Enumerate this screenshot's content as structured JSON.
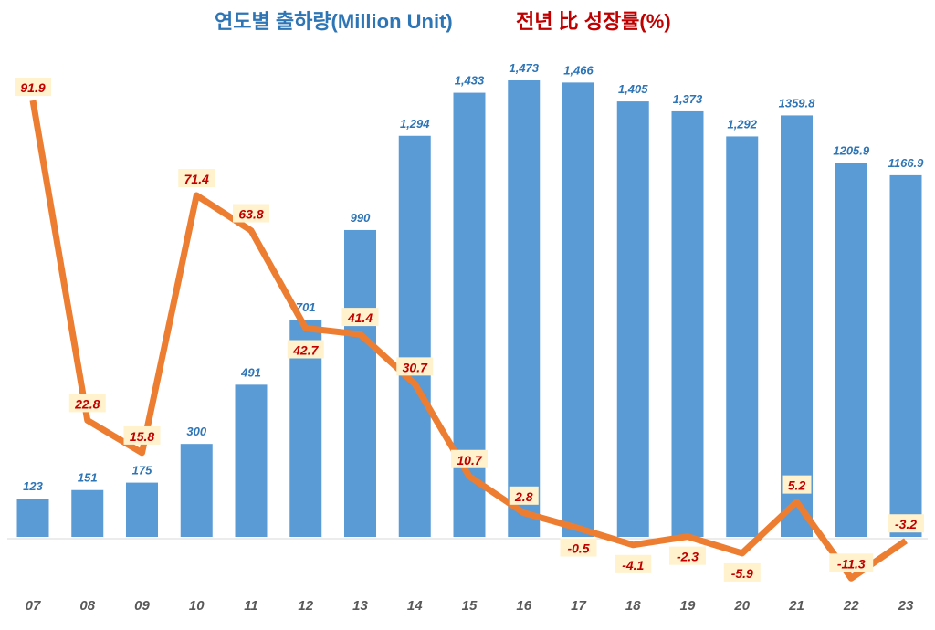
{
  "chart_data": {
    "type": "bar+line",
    "legend_titles": [
      "연도별 출하량(Million Unit)",
      "전년 比 성장률(%)"
    ],
    "categories": [
      "07",
      "08",
      "09",
      "10",
      "11",
      "12",
      "13",
      "14",
      "15",
      "16",
      "17",
      "18",
      "19",
      "20",
      "21",
      "22",
      "23"
    ],
    "series": [
      {
        "name": "연도별 출하량(Million Unit)",
        "type": "bar",
        "color": "#5b9bd5",
        "values": [
          123,
          151,
          175,
          300,
          491,
          701,
          990,
          1294,
          1433,
          1473,
          1466,
          1405,
          1373,
          1292,
          1359.8,
          1205.9,
          1166.9
        ],
        "labels": [
          "123",
          "151",
          "175",
          "300",
          "491",
          "701",
          "990",
          "1,294",
          "1,433",
          "1,473",
          "1,466",
          "1,405",
          "1,373",
          "1,292",
          "1359.8",
          "1205.9",
          "1166.9"
        ]
      },
      {
        "name": "전년 比 성장률(%)",
        "type": "line",
        "color": "#ed7d31",
        "values": [
          91.9,
          22.8,
          15.8,
          71.4,
          63.8,
          42.7,
          41.4,
          30.7,
          10.7,
          2.8,
          -0.5,
          -4.1,
          -2.3,
          -5.9,
          5.2,
          -11.3,
          -3.2
        ]
      }
    ],
    "grid": false
  }
}
